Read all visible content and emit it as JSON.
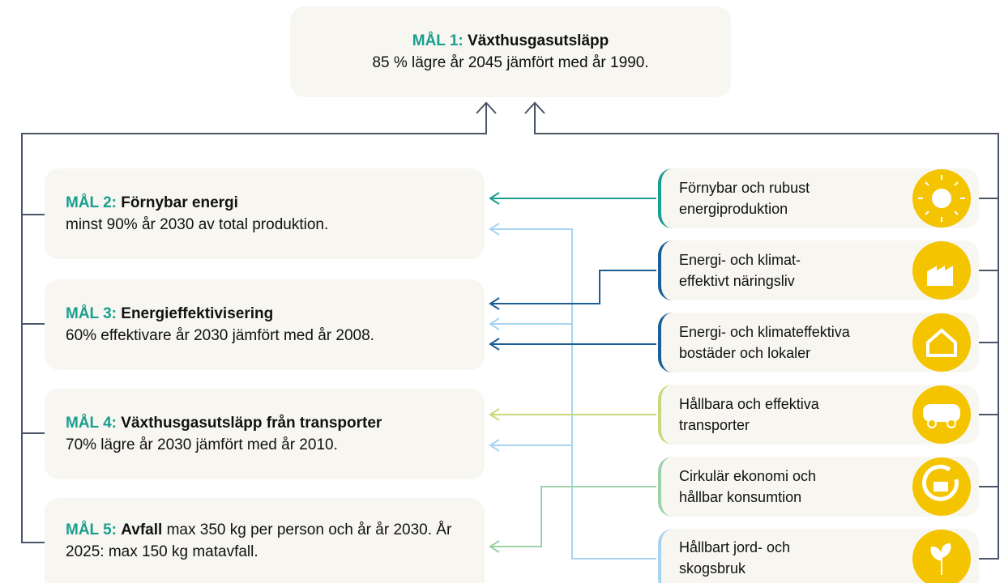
{
  "top_goal": {
    "label": "MÅL 1:",
    "title": "Växthusgasutsläpp",
    "text": "85 % lägre år 2045 jämfört med år 1990."
  },
  "goals": [
    {
      "label": "MÅL 2:",
      "title": "Förnybar energi",
      "text": "minst 90% år 2030 av total produktion."
    },
    {
      "label": "MÅL 3:",
      "title": "Energieffektivisering",
      "text": "60% effektivare år 2030 jämfört med år 2008."
    },
    {
      "label": "MÅL 4:",
      "title": "Växthusgasutsläpp från transporter",
      "text": "70% lägre år 2030 jämfört med år 2010."
    },
    {
      "label": "MÅL 5:",
      "title": "Avfall",
      "text": "max 350 kg per person och år år 2030. År 2025: max 150 kg matavfall."
    }
  ],
  "strategies": [
    {
      "lines": [
        "Förnybar och rubust",
        "energiproduktion"
      ]
    },
    {
      "lines": [
        "Energi- och klimat-",
        "effektivt näringsliv"
      ]
    },
    {
      "lines": [
        "Energi- och klimateffektiva",
        "bostäder och lokaler"
      ]
    },
    {
      "lines": [
        "Hållbara och effektiva",
        "transporter"
      ]
    },
    {
      "lines": [
        "Cirkulär ekonomi och",
        "hållbar konsumtion"
      ]
    },
    {
      "lines": [
        "Hållbart jord- och",
        "skogsbruk"
      ]
    }
  ]
}
